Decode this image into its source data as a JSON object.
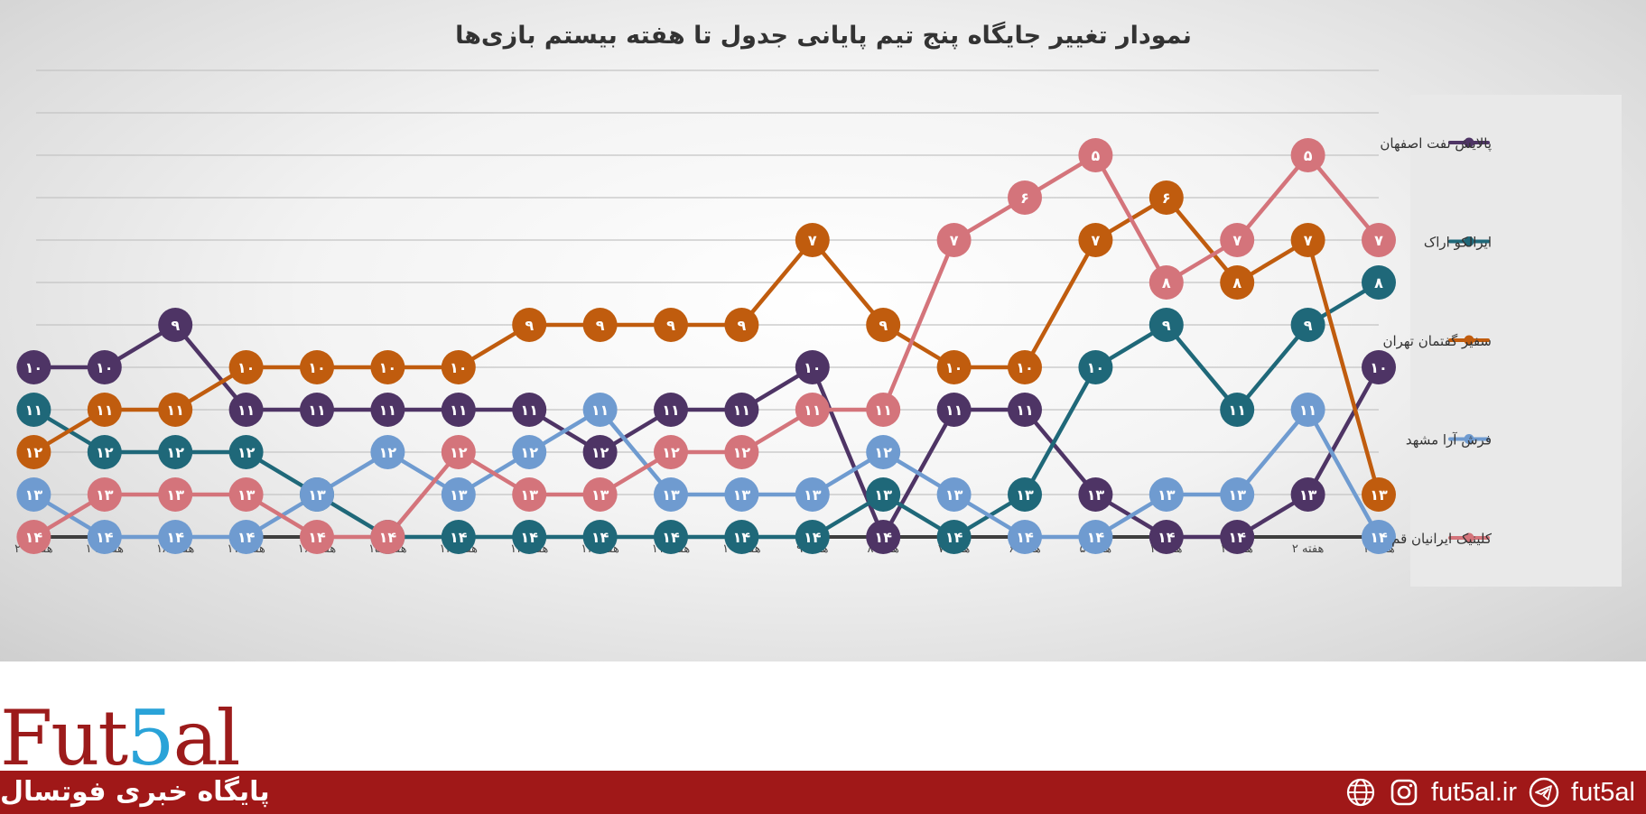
{
  "chart_data": {
    "type": "line",
    "title": "نمودار تغییر جایگاه پنج تیم پایانی جدول تا هفته بیستم بازی‌ها",
    "categories": [
      "هفته ۱",
      "هفته ۲",
      "هفته ۳",
      "هفته ۴",
      "هفته ۵",
      "هفته ۶",
      "هفته ۷",
      "هفته ۸",
      "هفته ۹",
      "هفته ۱۰",
      "هفته ۱۱",
      "هفته ۱۲",
      "هفته ۱۳",
      "هفته ۱۴",
      "هفته ۱۵",
      "هفته ۱۶",
      "هفته ۱۷",
      "هفته ۱۸",
      "هفته ۱۹",
      "هفته ۲۰"
    ],
    "ylim": [
      3,
      14
    ],
    "y_reversed": true,
    "grid": true,
    "legend_position": "right",
    "series": [
      {
        "name": "پالایش نفت اصفهان",
        "color": "#4e3465",
        "values": [
          10,
          13,
          14,
          14,
          13,
          11,
          11,
          14,
          10,
          11,
          11,
          12,
          11,
          11,
          11,
          11,
          11,
          9,
          10,
          10
        ]
      },
      {
        "name": "ایرالکو اراک",
        "color": "#1f6879",
        "values": [
          8,
          9,
          11,
          9,
          10,
          13,
          14,
          13,
          14,
          14,
          14,
          14,
          14,
          14,
          14,
          13,
          12,
          12,
          12,
          11
        ]
      },
      {
        "name": "سفیر گفتمان تهران",
        "color": "#c05c0e",
        "values": [
          13,
          7,
          8,
          6,
          7,
          10,
          10,
          9,
          7,
          9,
          9,
          9,
          9,
          10,
          10,
          10,
          10,
          11,
          11,
          12
        ]
      },
      {
        "name": "فرش آرا مشهد",
        "color": "#6f9bd0",
        "values": [
          14,
          11,
          13,
          13,
          14,
          14,
          13,
          12,
          13,
          13,
          13,
          11,
          12,
          13,
          12,
          13,
          14,
          14,
          14,
          13
        ]
      },
      {
        "name": "کلینیک ایرانیان قم",
        "color": "#d4747b",
        "values": [
          7,
          5,
          7,
          8,
          5,
          6,
          7,
          11,
          11,
          12,
          12,
          13,
          13,
          12,
          14,
          14,
          13,
          13,
          13,
          14
        ]
      }
    ]
  },
  "brand": {
    "logo_a": "Fut",
    "logo_five": "5",
    "logo_b": "al",
    "tagline": "پایگاه خبری فوتسال",
    "website": "fut5al.ir",
    "handle": "fut5al"
  },
  "colors": {
    "footer_bar": "#a01818",
    "logo_red": "#9c1b1b",
    "logo_blue": "#2aa3d8"
  },
  "icons": [
    "globe-icon",
    "instagram-icon",
    "telegram-icon"
  ]
}
